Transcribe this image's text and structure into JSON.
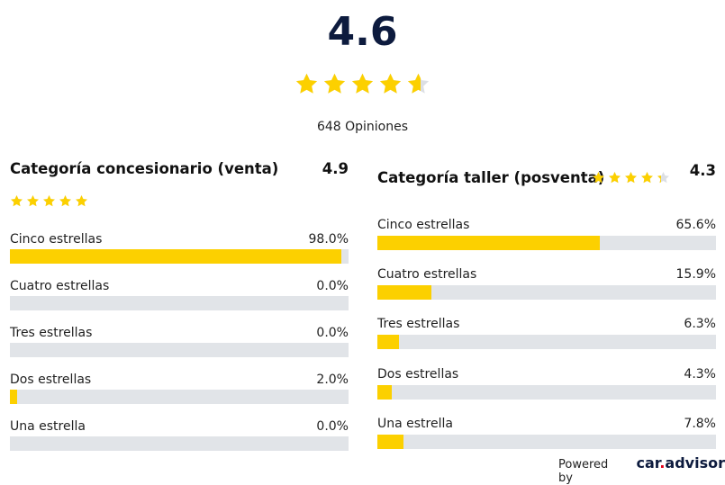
{
  "overall": {
    "score": "4.6",
    "rating": 4.6,
    "reviews_label": "648 Opiniones"
  },
  "colors": {
    "star": "#fcd000",
    "star_empty": "#dcdfe4",
    "bar": "#fcd000",
    "track": "#e1e4e8"
  },
  "categories": [
    {
      "title": "Categoría concesionario (venta)",
      "score": "4.9",
      "rating": 4.9,
      "rows": [
        {
          "label": "Cinco estrellas",
          "pct_text": "98.0%",
          "pct": 98.0
        },
        {
          "label": "Cuatro estrellas",
          "pct_text": "0.0%",
          "pct": 0.0
        },
        {
          "label": "Tres estrellas",
          "pct_text": "0.0%",
          "pct": 0.0
        },
        {
          "label": "Dos estrellas",
          "pct_text": "2.0%",
          "pct": 2.0
        },
        {
          "label": "Una estrella",
          "pct_text": "0.0%",
          "pct": 0.0
        }
      ]
    },
    {
      "title": "Categoría taller (posventa)",
      "score": "4.3",
      "rating": 4.3,
      "rows": [
        {
          "label": "Cinco estrellas",
          "pct_text": "65.6%",
          "pct": 65.6
        },
        {
          "label": "Cuatro estrellas",
          "pct_text": "15.9%",
          "pct": 15.9
        },
        {
          "label": "Tres estrellas",
          "pct_text": "6.3%",
          "pct": 6.3
        },
        {
          "label": "Dos estrellas",
          "pct_text": "4.3%",
          "pct": 4.3
        },
        {
          "label": "Una estrella",
          "pct_text": "7.8%",
          "pct": 7.8
        }
      ]
    }
  ],
  "footer": {
    "powered_by": "Powered by",
    "logo_main": "car",
    "logo_dot": ".",
    "logo_tail": "advisor"
  }
}
